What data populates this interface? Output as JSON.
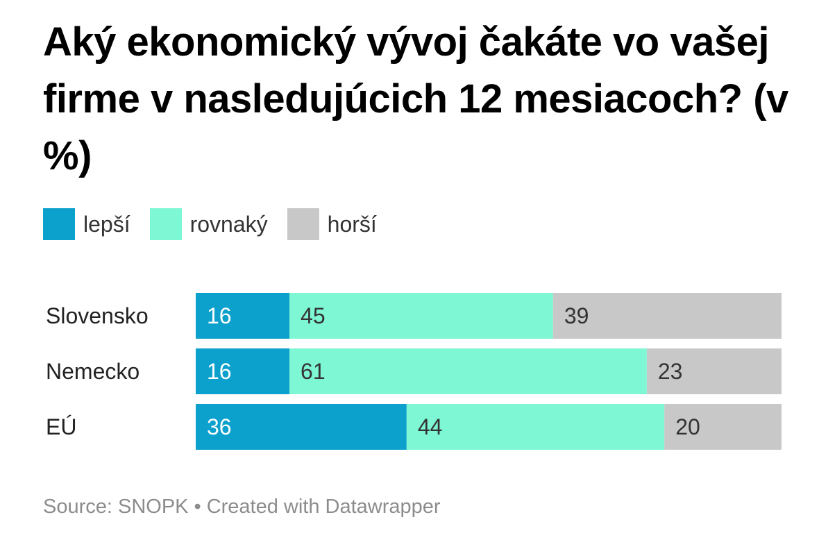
{
  "title": "Aký ekonomický vývoj čakáte vo vašej firme v nasledujúcich 12 mesiacoch? (v %)",
  "legend": [
    {
      "label": "lepší",
      "color": "#0ca0cc"
    },
    {
      "label": "rovnaký",
      "color": "#7ef7d4"
    },
    {
      "label": "horší",
      "color": "#c8c8c8"
    }
  ],
  "chart_data": {
    "type": "bar",
    "orientation": "horizontal",
    "stacked": true,
    "categories": [
      "Slovensko",
      "Nemecko",
      "EÚ"
    ],
    "series": [
      {
        "name": "lepší",
        "values": [
          16,
          16,
          36
        ],
        "color": "#0ca0cc"
      },
      {
        "name": "rovnaký",
        "values": [
          45,
          61,
          44
        ],
        "color": "#7ef7d4"
      },
      {
        "name": "horší",
        "values": [
          39,
          23,
          20
        ],
        "color": "#c8c8c8"
      }
    ],
    "xlim": [
      0,
      100
    ],
    "data_labels": true,
    "legend_position": "top-left"
  },
  "footer": {
    "source": "Source: SNOPK",
    "separator": "•",
    "credit": "Created with Datawrapper"
  }
}
